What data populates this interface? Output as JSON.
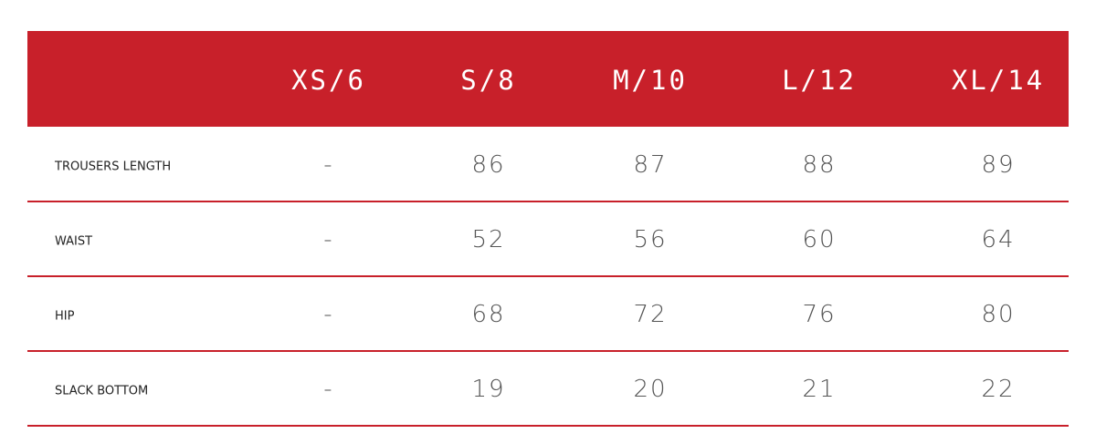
{
  "table": {
    "columns": [
      "XS/6",
      "S/8",
      "M/10",
      "L/12",
      "XL/14"
    ],
    "rows": [
      {
        "label": "TROUSERS LENGTH",
        "cells": [
          "-",
          86,
          87,
          88,
          89
        ]
      },
      {
        "label": "WAIST",
        "cells": [
          "-",
          52,
          56,
          60,
          64
        ]
      },
      {
        "label": "HIP",
        "cells": [
          "-",
          68,
          72,
          76,
          80
        ]
      },
      {
        "label": "SLACK BOTTOM",
        "cells": [
          "-",
          19,
          20,
          21,
          22
        ]
      }
    ]
  }
}
